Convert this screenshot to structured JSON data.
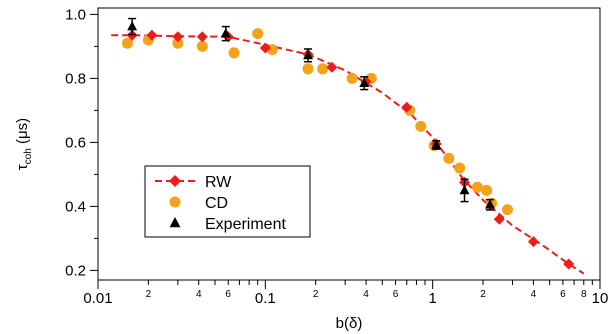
{
  "chart_data": {
    "type": "scatter",
    "title": "",
    "xlabel": "b(δ)",
    "ylabel": {
      "main": "τ",
      "sub": "coh",
      "unit": " (μs)"
    },
    "xscale": "log",
    "xlim": [
      0.01,
      10
    ],
    "ylim": [
      0.17,
      1.02
    ],
    "x_major_ticks": [
      0.01,
      0.1,
      1,
      10
    ],
    "x_major_labels": [
      "0.01",
      "0.1",
      "1",
      "10"
    ],
    "x_minor_ticks": [
      0.02,
      0.03,
      0.04,
      0.05,
      0.06,
      0.07,
      0.08,
      0.09,
      0.2,
      0.3,
      0.4,
      0.5,
      0.6,
      0.7,
      0.8,
      0.9,
      2,
      3,
      4,
      5,
      6,
      7,
      8,
      9
    ],
    "x_minor_labelled": [
      0.02,
      0.04,
      0.06,
      0.2,
      0.4,
      0.6,
      2,
      4,
      6,
      8
    ],
    "y_ticks": [
      0.2,
      0.4,
      0.6,
      0.8,
      1.0
    ],
    "y_tick_labels": [
      "0.2",
      "0.4",
      "0.6",
      "0.8",
      "1.0"
    ],
    "legend_position": "lower-left",
    "series": [
      {
        "name": "RW",
        "marker": "diamond",
        "line": "dashed",
        "color": "#ee1c1c",
        "x": [
          0.016,
          0.021,
          0.03,
          0.042,
          0.06,
          0.1,
          0.18,
          0.25,
          0.4,
          0.7,
          1.05,
          1.55,
          2.5,
          4.0,
          6.5
        ],
        "y": [
          0.935,
          0.935,
          0.93,
          0.93,
          0.93,
          0.895,
          0.875,
          0.835,
          0.79,
          0.71,
          0.595,
          0.475,
          0.36,
          0.29,
          0.22
        ]
      },
      {
        "name": "CD",
        "marker": "circle",
        "color": "#f5a21b",
        "x": [
          0.015,
          0.02,
          0.03,
          0.042,
          0.065,
          0.09,
          0.11,
          0.18,
          0.22,
          0.33,
          0.43,
          0.73,
          0.85,
          1.02,
          1.25,
          1.45,
          1.85,
          2.1,
          2.25,
          2.8
        ],
        "y": [
          0.91,
          0.92,
          0.91,
          0.9,
          0.88,
          0.94,
          0.89,
          0.83,
          0.83,
          0.8,
          0.8,
          0.7,
          0.65,
          0.59,
          0.55,
          0.52,
          0.46,
          0.45,
          0.41,
          0.39
        ]
      },
      {
        "name": "Experiment",
        "marker": "triangle",
        "color": "#000000",
        "x": [
          0.016,
          0.058,
          0.18,
          0.39,
          1.05,
          1.55,
          2.2
        ],
        "y": [
          0.962,
          0.94,
          0.872,
          0.785,
          0.592,
          0.45,
          0.405
        ],
        "err": [
          0.025,
          0.022,
          0.02,
          0.02,
          0.013,
          0.035,
          0.016
        ]
      }
    ],
    "fit_curve": {
      "x": [
        0.012,
        0.016,
        0.03,
        0.06,
        0.1,
        0.18,
        0.3,
        0.5,
        0.75,
        1.0,
        1.5,
        2.0,
        3.0,
        4.5,
        6.5,
        8.0
      ],
      "y": [
        0.935,
        0.935,
        0.932,
        0.93,
        0.905,
        0.875,
        0.825,
        0.755,
        0.685,
        0.615,
        0.49,
        0.42,
        0.34,
        0.28,
        0.22,
        0.19
      ]
    }
  }
}
